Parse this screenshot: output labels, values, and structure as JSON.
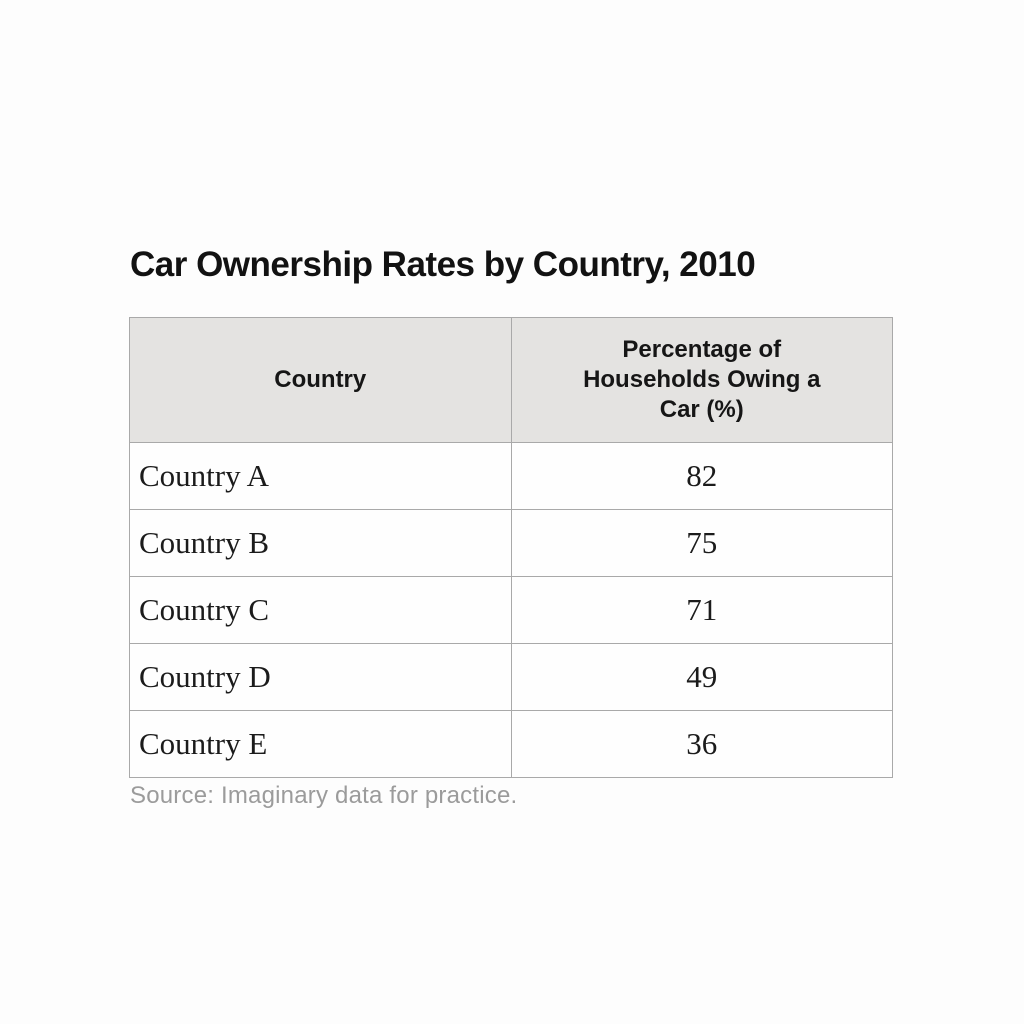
{
  "title": "Car Ownership Rates by Country, 2010",
  "source": "Source: Imaginary data for practice.",
  "table": {
    "columns": [
      "Country",
      "Percentage of Households Owing a Car (%)"
    ],
    "rows": [
      {
        "country": "Country A",
        "value": "82"
      },
      {
        "country": "Country B",
        "value": "75"
      },
      {
        "country": "Country C",
        "value": "71"
      },
      {
        "country": "Country D",
        "value": "49"
      },
      {
        "country": "Country E",
        "value": "36"
      }
    ]
  },
  "chart_data": {
    "type": "table",
    "title": "Car Ownership Rates by Country, 2010",
    "columns": [
      "Country",
      "Percentage of Households Owing a Car (%)"
    ],
    "categories": [
      "Country A",
      "Country B",
      "Country C",
      "Country D",
      "Country E"
    ],
    "values": [
      82,
      75,
      71,
      49,
      36
    ],
    "ylabel": "Percentage of Households Owing a Car (%)",
    "source": "Source: Imaginary data for practice."
  },
  "colors": {
    "page_background": "#fdfdfd",
    "header_background": "#e4e3e1",
    "border": "#a9a9a9",
    "title_text": "#121212",
    "body_text": "#1b1b1b",
    "source_text": "#9b9b9b"
  }
}
